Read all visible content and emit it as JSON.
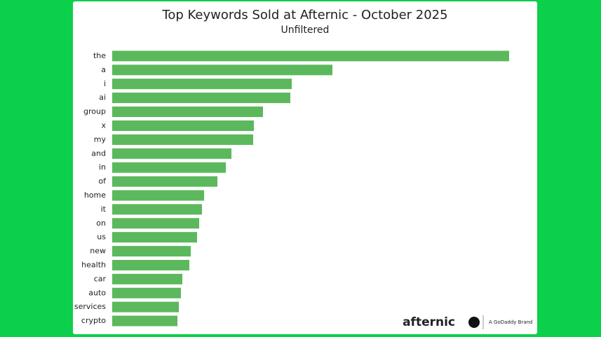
{
  "chart_data": {
    "type": "bar",
    "orientation": "horizontal",
    "title": "Top Keywords Sold at Afternic - October 2025",
    "subtitle": "Unfiltered",
    "categories": [
      "the",
      "a",
      "i",
      "ai",
      "group",
      "x",
      "my",
      "and",
      "in",
      "of",
      "home",
      "it",
      "on",
      "us",
      "new",
      "health",
      "car",
      "auto",
      "services",
      "crypto"
    ],
    "values": [
      566,
      314,
      256,
      254,
      215,
      202,
      201,
      170,
      162,
      150,
      131,
      128,
      124,
      121,
      112,
      110,
      100,
      98,
      95,
      93
    ],
    "color": "#5cb85c",
    "xlim": [
      0,
      566
    ]
  },
  "branding": {
    "logo": "afternic",
    "tagline": "A GoDaddy Brand"
  }
}
